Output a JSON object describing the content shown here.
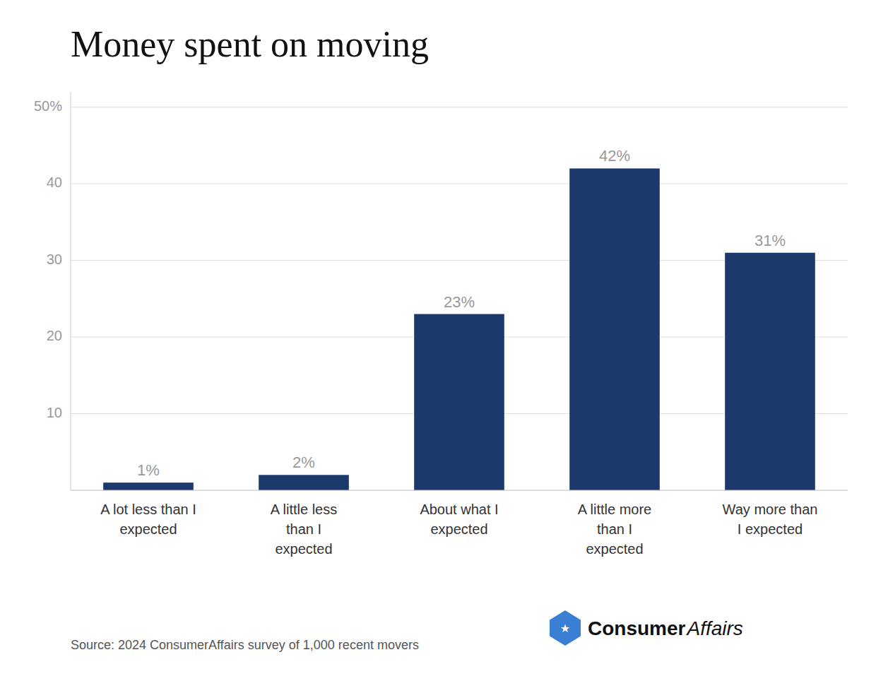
{
  "chart_data": {
    "type": "bar",
    "title": "Money spent on moving",
    "categories": [
      "A lot less than I\nexpected",
      "A little less\nthan I\nexpected",
      "About what I\nexpected",
      "A little more\nthan I\nexpected",
      "Way more than\nI expected"
    ],
    "values": [
      1,
      2,
      23,
      42,
      31
    ],
    "value_labels": [
      "1%",
      "2%",
      "23%",
      "42%",
      "31%"
    ],
    "data_labels": true,
    "color": "#1b3a6b",
    "ylim": [
      0,
      52
    ],
    "yticks": [
      10,
      20,
      30,
      40,
      {
        "value": 50,
        "label": "50%"
      }
    ],
    "grid": true,
    "annotations": [
      "Source: 2024 ConsumerAffairs survey of 1,000 recent movers",
      "★",
      "Consumer",
      "Affairs"
    ]
  }
}
